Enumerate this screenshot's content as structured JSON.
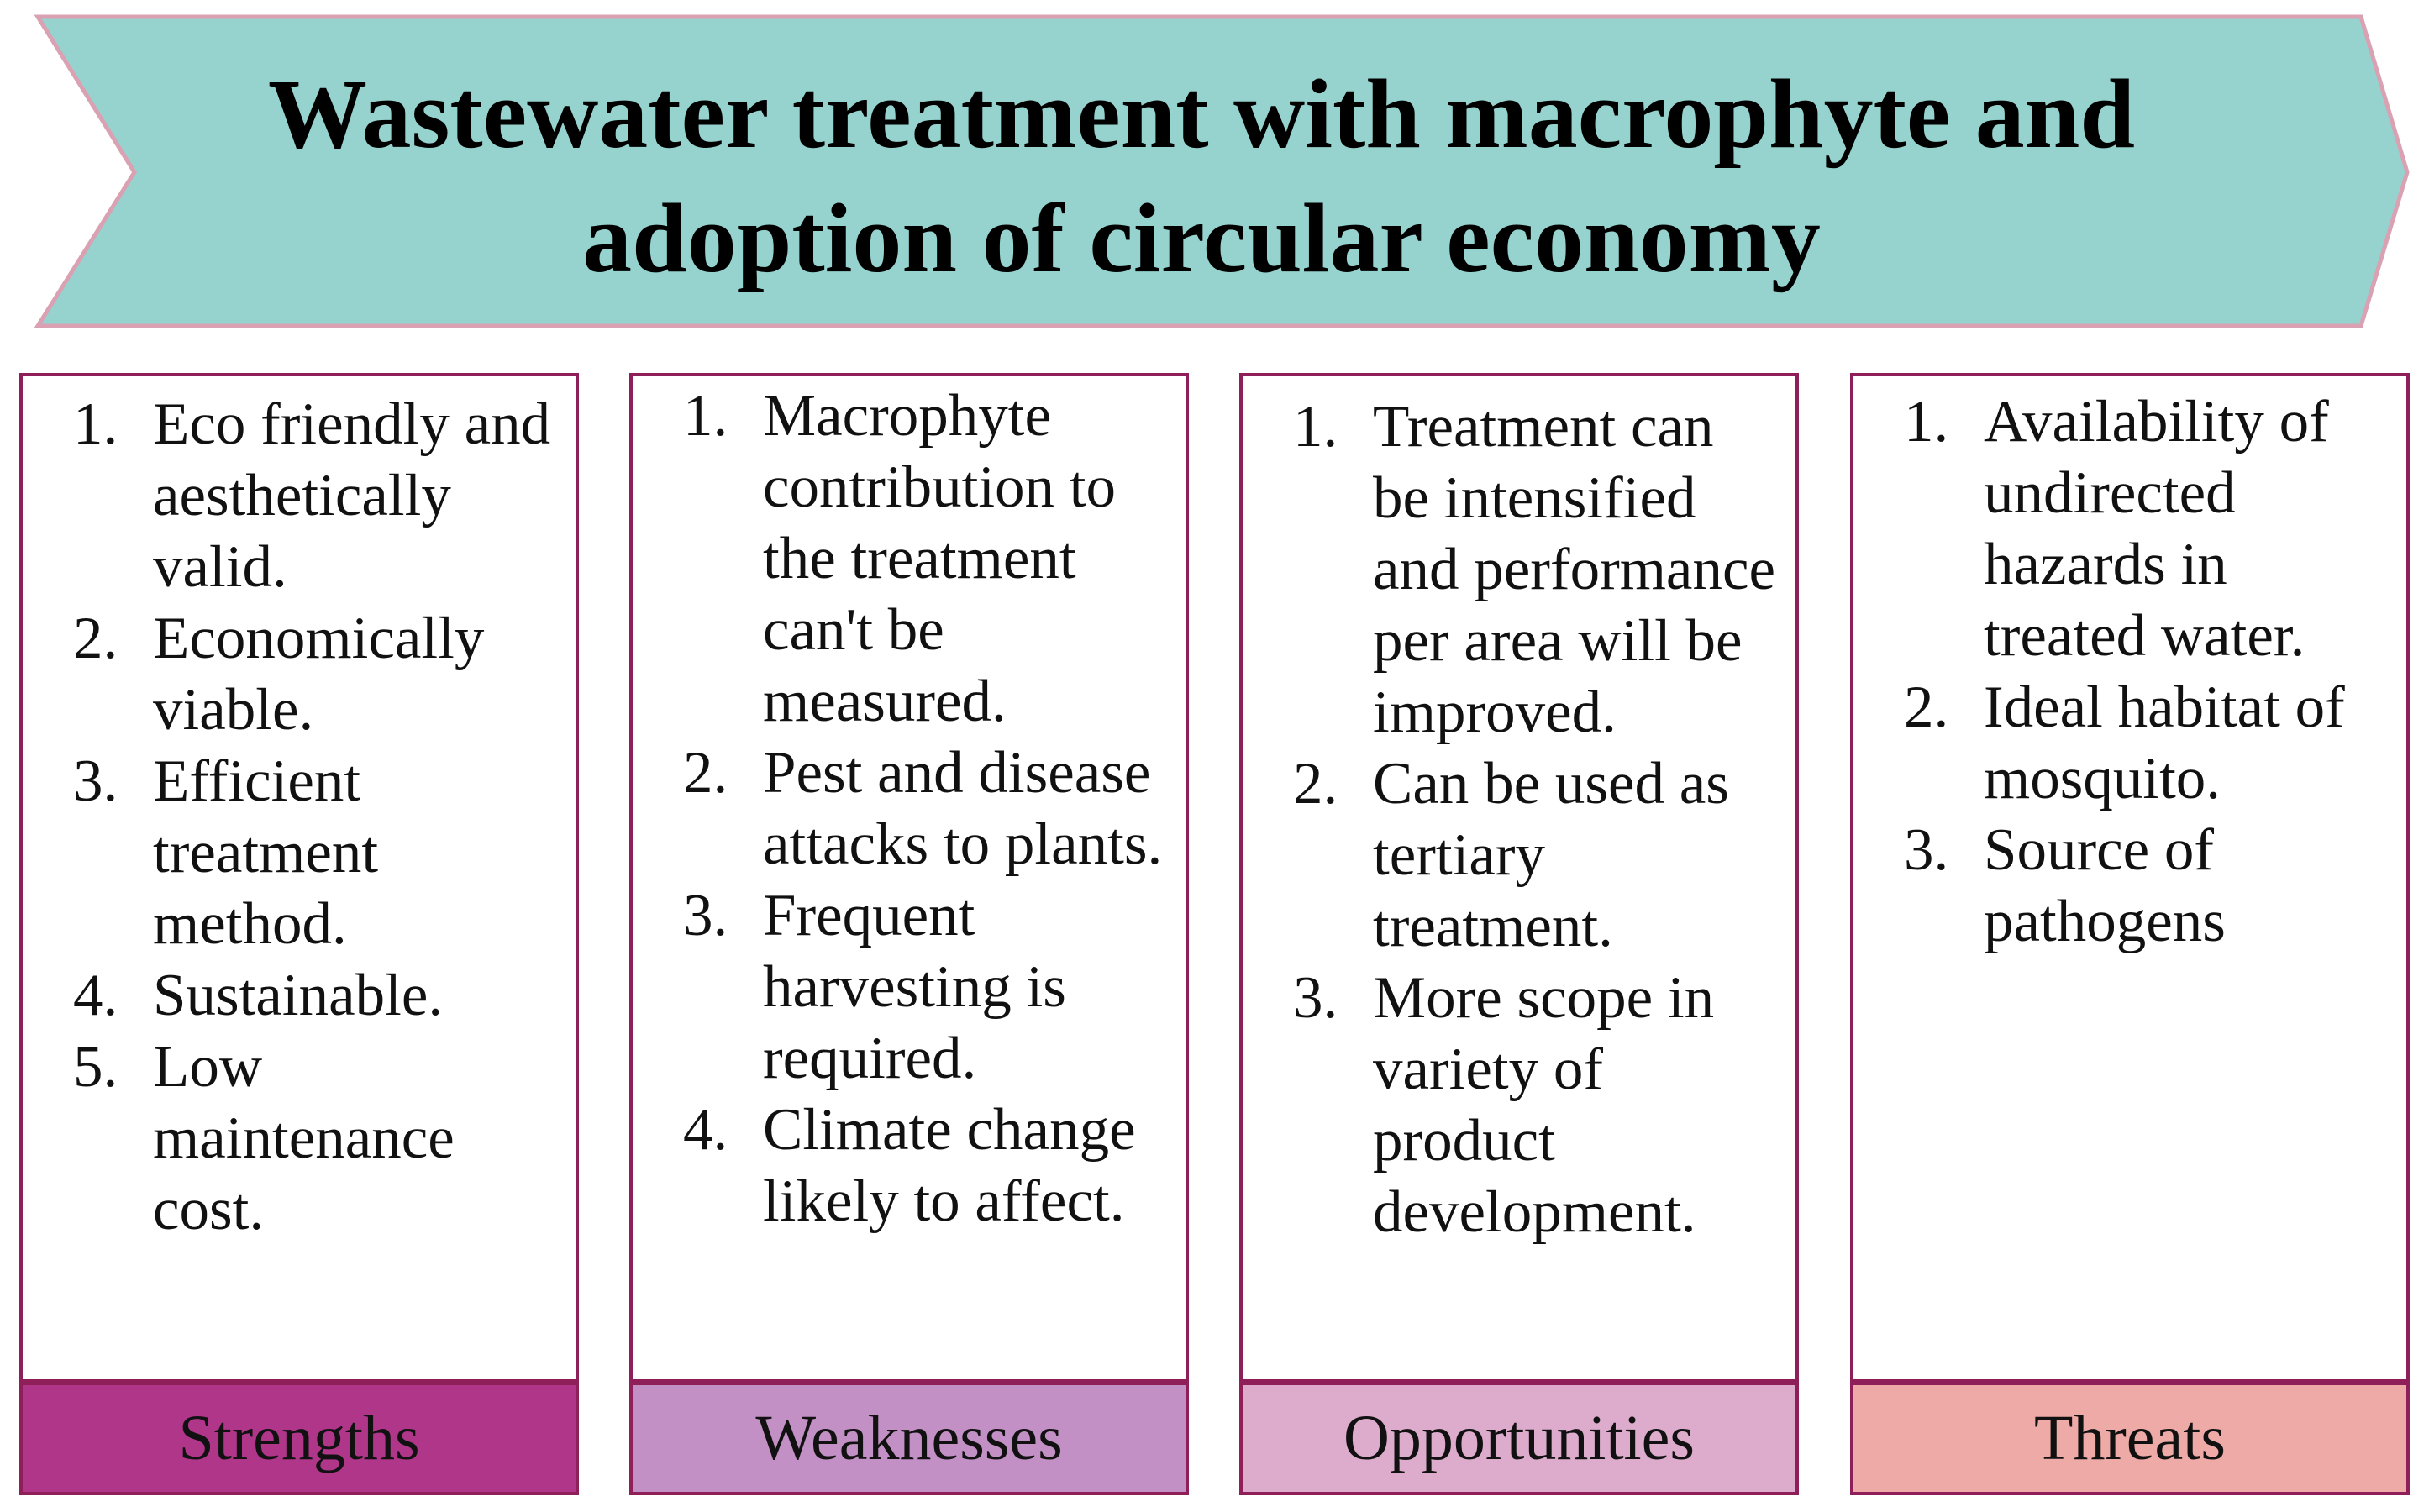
{
  "title": {
    "line1": "Wastewater treatment with macrophyte and",
    "line2": "adoption of circular economy"
  },
  "colors": {
    "banner_fill": "#96d3cf",
    "banner_stroke": "#d9a1b2",
    "border": "#8e1f58",
    "strengths": "#b0368a",
    "weaknesses": "#c290c4",
    "opportunities": "#ddaccd",
    "threats": "#eeaaa6"
  },
  "columns": [
    {
      "label": "Strengths",
      "items": [
        {
          "num": "1.",
          "text": "Eco friendly and aesthetically valid."
        },
        {
          "num": "2.",
          "text": "Economically viable."
        },
        {
          "num": "3.",
          "text": "Efficient treatment method."
        },
        {
          "num": "4.",
          "text": "Sustainable."
        },
        {
          "num": "5.",
          "text": "Low maintenance cost."
        }
      ]
    },
    {
      "label": "Weaknesses",
      "items": [
        {
          "num": "1.",
          "text": "Macrophyte contribution to the treatment can't be measured."
        },
        {
          "num": "2.",
          "text": "Pest and disease attacks to plants."
        },
        {
          "num": "3.",
          "text": "Frequent harvesting is required."
        },
        {
          "num": "4.",
          "text": "Climate change likely to affect."
        }
      ]
    },
    {
      "label": "Opportunities",
      "items": [
        {
          "num": "1.",
          "text": "Treatment can be intensified and performance per area will be improved."
        },
        {
          "num": "2.",
          "text": "Can be used as tertiary treatment."
        },
        {
          "num": "3.",
          "text": "More scope in variety of product development."
        }
      ]
    },
    {
      "label": "Threats",
      "items": [
        {
          "num": "1.",
          "text": "Availability of undirected hazards in treated water."
        },
        {
          "num": "2.",
          "text": "Ideal habitat of  mosquito."
        },
        {
          "num": "3.",
          "text": "Source of pathogens"
        }
      ]
    }
  ]
}
